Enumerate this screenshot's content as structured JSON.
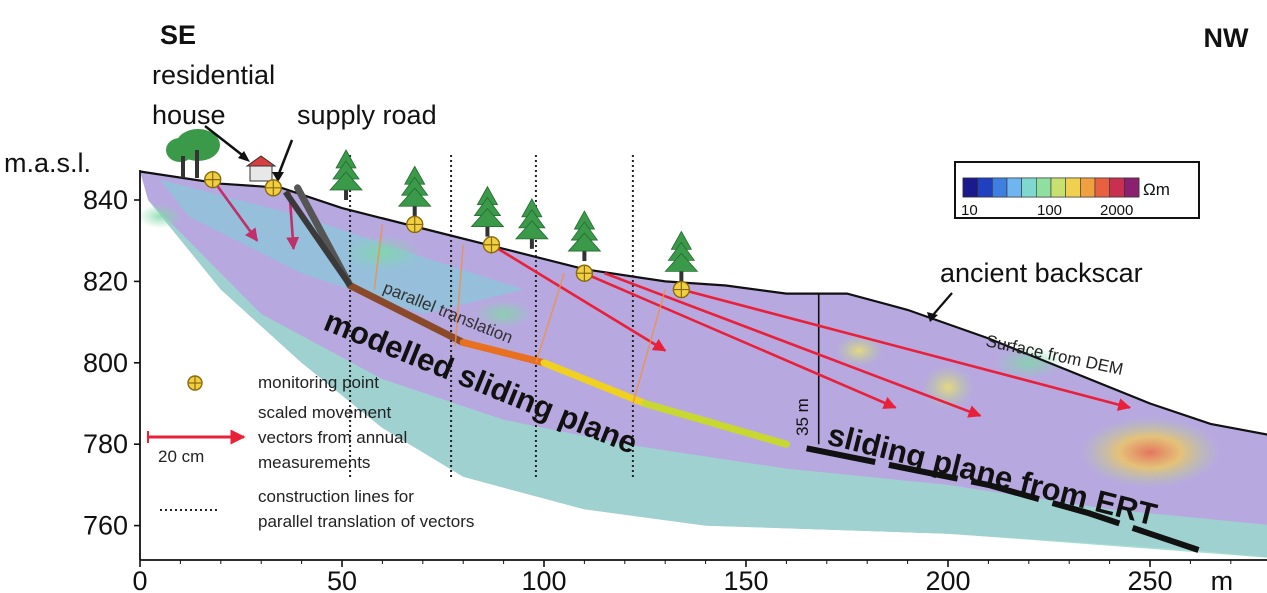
{
  "title": "",
  "direction": {
    "left": "SE",
    "right": "NW"
  },
  "y_axis": {
    "unit_label": "m.a.s.l.",
    "ticks": [
      840,
      820,
      800,
      780,
      760
    ],
    "range": [
      755,
      850
    ]
  },
  "x_axis": {
    "unit_label": "m",
    "ticks": [
      0,
      50,
      100,
      150,
      200,
      250
    ],
    "range": [
      0,
      281
    ]
  },
  "annotations": {
    "residential_house_line1": "residential",
    "residential_house_line2": "house",
    "supply_road": "supply road",
    "parallel_translation": "parallel translation",
    "modelled_sliding_plane": "modelled sliding plane",
    "sliding_plane_ert": "sliding plane from ERT",
    "ancient_backscar": "ancient backscar",
    "surface_dem": "Surface from DEM",
    "depth_label": "35 m"
  },
  "resistivity_scale": {
    "unit": "Ωm",
    "min_label": "10",
    "mid_label": "100",
    "max_label": "2000",
    "colors": [
      "#1a1a8c",
      "#2040c0",
      "#3f7fe0",
      "#6fb6f0",
      "#7fd8d0",
      "#8fe0a0",
      "#c8e070",
      "#f0d050",
      "#f0a040",
      "#e86040",
      "#c83050",
      "#8c2070"
    ]
  },
  "legend": {
    "monitoring_point": "monitoring point",
    "vectors_line1": "scaled movement",
    "vectors_line2": "vectors from annual",
    "vectors_line3": "measurements",
    "scale_bar": "20 cm",
    "construction_line1": "construction lines for",
    "construction_line2": "parallel translation of vectors"
  },
  "chart_data": {
    "type": "cross-section",
    "xlabel": "m",
    "ylabel": "m.a.s.l.",
    "xlim": [
      0,
      281
    ],
    "ylim": [
      755,
      850
    ],
    "surface_profile": [
      {
        "x": 0,
        "y": 847
      },
      {
        "x": 20,
        "y": 844
      },
      {
        "x": 35,
        "y": 843
      },
      {
        "x": 50,
        "y": 838
      },
      {
        "x": 70,
        "y": 833
      },
      {
        "x": 90,
        "y": 828
      },
      {
        "x": 110,
        "y": 823
      },
      {
        "x": 130,
        "y": 820
      },
      {
        "x": 145,
        "y": 819
      },
      {
        "x": 160,
        "y": 817
      },
      {
        "x": 175,
        "y": 817
      },
      {
        "x": 190,
        "y": 813
      },
      {
        "x": 210,
        "y": 806
      },
      {
        "x": 230,
        "y": 798
      },
      {
        "x": 250,
        "y": 790
      },
      {
        "x": 265,
        "y": 785
      },
      {
        "x": 281,
        "y": 782
      }
    ],
    "modelled_sliding_plane": [
      {
        "x": 39,
        "y": 843
      },
      {
        "x": 52,
        "y": 819
      },
      {
        "x": 80,
        "y": 805
      },
      {
        "x": 100,
        "y": 800
      },
      {
        "x": 125,
        "y": 790
      },
      {
        "x": 160,
        "y": 780
      }
    ],
    "ert_sliding_plane": [
      {
        "x": 165,
        "y": 779
      },
      {
        "x": 210,
        "y": 770
      },
      {
        "x": 235,
        "y": 763
      },
      {
        "x": 262,
        "y": 754
      }
    ],
    "monitoring_points": [
      {
        "x": 18,
        "y": 845
      },
      {
        "x": 33,
        "y": 843
      },
      {
        "x": 68,
        "y": 834
      },
      {
        "x": 87,
        "y": 829
      },
      {
        "x": 110,
        "y": 822
      },
      {
        "x": 134,
        "y": 818
      }
    ],
    "movement_vectors": [
      {
        "x1": 18,
        "y1": 845,
        "x2": 29,
        "y2": 830
      },
      {
        "x1": 37,
        "y1": 842,
        "x2": 38,
        "y2": 828
      },
      {
        "x1": 87,
        "y1": 829,
        "x2": 130,
        "y2": 803
      },
      {
        "x1": 110,
        "y1": 822,
        "x2": 187,
        "y2": 789
      },
      {
        "x1": 115,
        "y1": 822,
        "x2": 208,
        "y2": 787
      },
      {
        "x1": 134,
        "y1": 818,
        "x2": 245,
        "y2": 789
      }
    ],
    "construction_lines_x": [
      52,
      77,
      98,
      122
    ]
  }
}
